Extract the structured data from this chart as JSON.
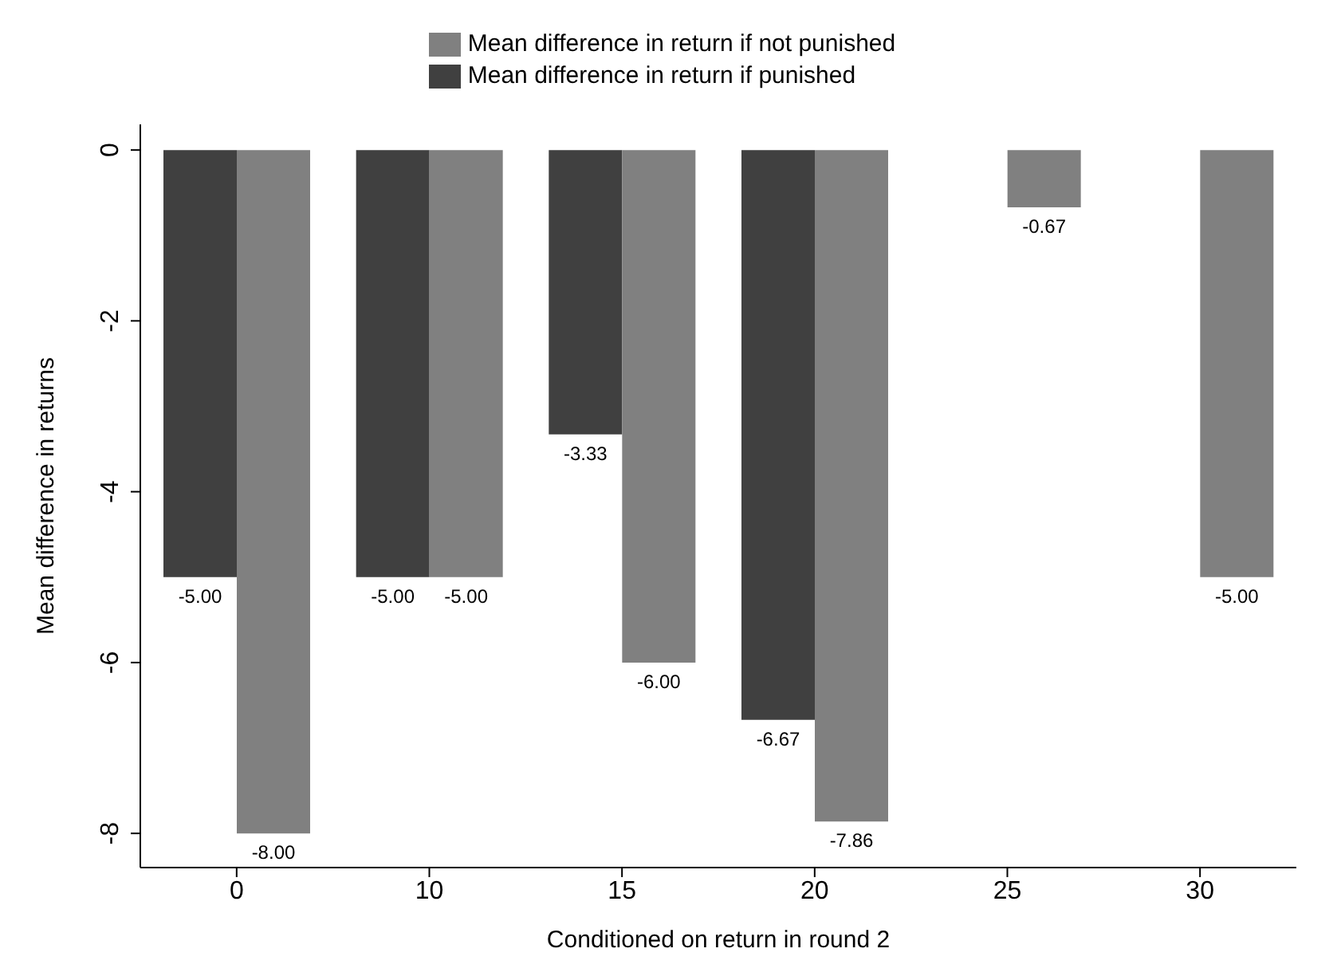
{
  "chart_data": {
    "type": "bar",
    "xlabel": "Conditioned on return in round 2",
    "ylabel": "Mean difference in returns",
    "categories": [
      "0",
      "10",
      "15",
      "20",
      "25",
      "30"
    ],
    "series": [
      {
        "name": "Mean difference in return if punished",
        "color": "#404040",
        "values": [
          -5,
          -5,
          -3.33,
          -6.67,
          null,
          null
        ],
        "value_labels": [
          "-5.00",
          "-5.00",
          "-3.33",
          "-6.67",
          null,
          null
        ]
      },
      {
        "name": "Mean difference in return if not punished",
        "color": "#808080",
        "values": [
          -8,
          -5,
          -6,
          -7.86,
          -0.67,
          -5
        ],
        "value_labels": [
          "-8.00",
          "-5.00",
          "-6.00",
          "-7.86",
          "-0.67",
          "-5.00"
        ]
      }
    ],
    "ylim": [
      -8.4,
      0.3
    ],
    "yticks": [
      0,
      -2,
      -4,
      -6,
      -8
    ],
    "grid": false,
    "legend": "top"
  }
}
